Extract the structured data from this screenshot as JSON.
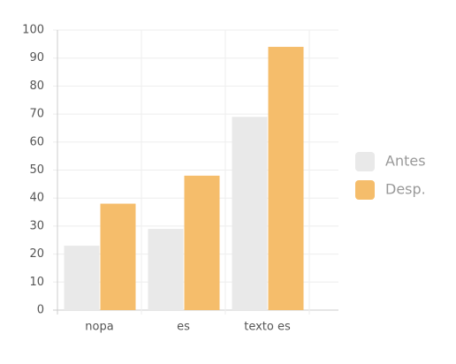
{
  "chart_data": {
    "type": "bar",
    "categories": [
      "nopa",
      "es",
      "texto es"
    ],
    "series": [
      {
        "name": "Antes",
        "color": "#e9e9e9",
        "values": [
          23,
          29,
          69
        ]
      },
      {
        "name": "Desp.",
        "color": "#f5bd6b",
        "values": [
          38,
          48,
          94
        ]
      }
    ],
    "ylim": [
      0,
      100
    ],
    "yticks": [
      0,
      10,
      20,
      30,
      40,
      50,
      60,
      70,
      80,
      90,
      100
    ],
    "grid": true,
    "legend": "right"
  }
}
